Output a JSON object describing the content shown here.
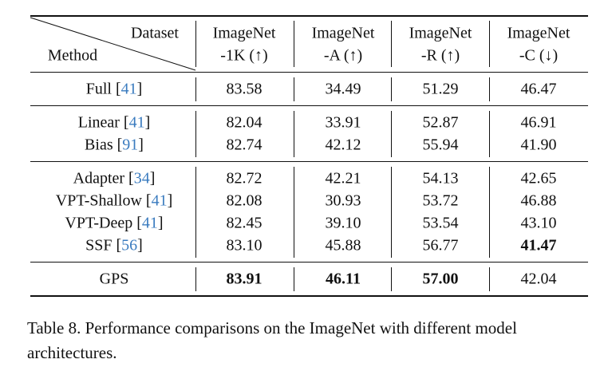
{
  "table": {
    "header": {
      "dataset": "Dataset",
      "method": "Method",
      "columns": [
        [
          "ImageNet",
          "-1K (↑)"
        ],
        [
          "ImageNet",
          "-A (↑)"
        ],
        [
          "ImageNet",
          "-R (↑)"
        ],
        [
          "ImageNet",
          "-C (↓)"
        ]
      ]
    },
    "groups": [
      [
        {
          "method": "Full [41]",
          "values": [
            "83.58",
            "34.49",
            "51.29",
            "46.47"
          ],
          "bold": []
        }
      ],
      [
        {
          "method": "Linear [41]",
          "values": [
            "82.04",
            "33.91",
            "52.87",
            "46.91"
          ],
          "bold": []
        },
        {
          "method": "Bias [91]",
          "values": [
            "82.74",
            "42.12",
            "55.94",
            "41.90"
          ],
          "bold": []
        }
      ],
      [
        {
          "method": "Adapter [34]",
          "values": [
            "82.72",
            "42.21",
            "54.13",
            "42.65"
          ],
          "bold": []
        },
        {
          "method": "VPT-Shallow [41]",
          "values": [
            "82.08",
            "30.93",
            "53.72",
            "46.88"
          ],
          "bold": []
        },
        {
          "method": "VPT-Deep [41]",
          "values": [
            "82.45",
            "39.10",
            "53.54",
            "43.10"
          ],
          "bold": []
        },
        {
          "method": "SSF [56]",
          "values": [
            "83.10",
            "45.88",
            "56.77",
            "41.47"
          ],
          "bold": [
            3
          ]
        }
      ],
      [
        {
          "method": "GPS",
          "values": [
            "83.91",
            "46.11",
            "57.00",
            "42.04"
          ],
          "bold": [
            0,
            1,
            2
          ]
        }
      ]
    ]
  },
  "caption": "Table 8. Performance comparisons on the ImageNet with different model architectures."
}
